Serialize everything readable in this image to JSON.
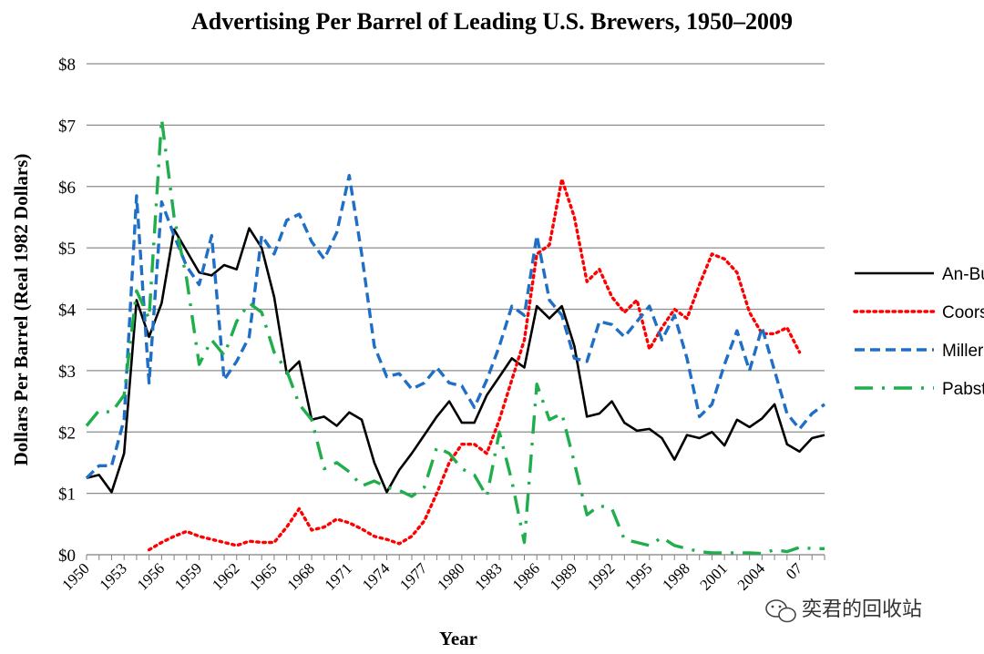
{
  "chart_data": {
    "type": "line",
    "title": "Advertising Per Barrel of Leading U.S. Brewers, 1950–2009",
    "xlabel": "Year",
    "ylabel": "Dollars Per Barrel (Real 1982 Dollars)",
    "xlim": [
      1950,
      2009
    ],
    "ylim": [
      0,
      8
    ],
    "y_ticks": [
      0,
      1,
      2,
      3,
      4,
      5,
      6,
      7,
      8
    ],
    "y_tick_labels": [
      "$0",
      "$1",
      "$2",
      "$3",
      "$4",
      "$5",
      "$6",
      "$7",
      "$8"
    ],
    "x_tick_labels": [
      "1950",
      "1953",
      "1956",
      "1959",
      "1962",
      "1965",
      "1968",
      "1971",
      "1974",
      "1977",
      "1980",
      "1983",
      "1986",
      "1989",
      "1992",
      "1995",
      "1998",
      "2001",
      "2004",
      "2007"
    ],
    "grid": "horizontal",
    "legend_position": "right",
    "series": [
      {
        "name": "An-Bu",
        "color": "#000000",
        "style": "solid",
        "points": [
          [
            1950,
            1.25
          ],
          [
            1951,
            1.3
          ],
          [
            1952,
            1.02
          ],
          [
            1953,
            1.65
          ],
          [
            1954,
            4.15
          ],
          [
            1955,
            3.55
          ],
          [
            1956,
            4.1
          ],
          [
            1957,
            5.3
          ],
          [
            1958,
            4.95
          ],
          [
            1959,
            4.6
          ],
          [
            1960,
            4.55
          ],
          [
            1961,
            4.72
          ],
          [
            1962,
            4.65
          ],
          [
            1963,
            5.32
          ],
          [
            1964,
            5.0
          ],
          [
            1965,
            4.2
          ],
          [
            1966,
            2.95
          ],
          [
            1967,
            3.15
          ],
          [
            1968,
            2.2
          ],
          [
            1969,
            2.25
          ],
          [
            1970,
            2.1
          ],
          [
            1971,
            2.32
          ],
          [
            1972,
            2.2
          ],
          [
            1973,
            1.5
          ],
          [
            1974,
            1.02
          ],
          [
            1975,
            1.38
          ],
          [
            1976,
            1.65
          ],
          [
            1977,
            1.95
          ],
          [
            1978,
            2.25
          ],
          [
            1979,
            2.5
          ],
          [
            1980,
            2.15
          ],
          [
            1981,
            2.15
          ],
          [
            1982,
            2.6
          ],
          [
            1983,
            2.9
          ],
          [
            1984,
            3.2
          ],
          [
            1985,
            3.05
          ],
          [
            1986,
            4.05
          ],
          [
            1987,
            3.85
          ],
          [
            1988,
            4.05
          ],
          [
            1989,
            3.4
          ],
          [
            1990,
            2.25
          ],
          [
            1991,
            2.3
          ],
          [
            1992,
            2.5
          ],
          [
            1993,
            2.15
          ],
          [
            1994,
            2.02
          ],
          [
            1995,
            2.05
          ],
          [
            1996,
            1.9
          ],
          [
            1997,
            1.55
          ],
          [
            1998,
            1.95
          ],
          [
            1999,
            1.9
          ],
          [
            2000,
            2.0
          ],
          [
            2001,
            1.78
          ],
          [
            2002,
            2.2
          ],
          [
            2003,
            2.08
          ],
          [
            2004,
            2.22
          ],
          [
            2005,
            2.45
          ],
          [
            2006,
            1.8
          ],
          [
            2007,
            1.68
          ],
          [
            2008,
            1.9
          ],
          [
            2009,
            1.95
          ]
        ]
      },
      {
        "name": "Coors",
        "color": "#ff0000",
        "style": "dotted",
        "points": [
          [
            1955,
            0.08
          ],
          [
            1956,
            0.2
          ],
          [
            1957,
            0.3
          ],
          [
            1958,
            0.38
          ],
          [
            1959,
            0.3
          ],
          [
            1960,
            0.25
          ],
          [
            1961,
            0.2
          ],
          [
            1962,
            0.15
          ],
          [
            1963,
            0.22
          ],
          [
            1964,
            0.2
          ],
          [
            1965,
            0.2
          ],
          [
            1966,
            0.45
          ],
          [
            1967,
            0.75
          ],
          [
            1968,
            0.4
          ],
          [
            1969,
            0.45
          ],
          [
            1970,
            0.58
          ],
          [
            1971,
            0.52
          ],
          [
            1972,
            0.42
          ],
          [
            1973,
            0.3
          ],
          [
            1974,
            0.25
          ],
          [
            1975,
            0.18
          ],
          [
            1976,
            0.3
          ],
          [
            1977,
            0.55
          ],
          [
            1978,
            1.0
          ],
          [
            1979,
            1.5
          ],
          [
            1980,
            1.8
          ],
          [
            1981,
            1.8
          ],
          [
            1982,
            1.65
          ],
          [
            1983,
            2.2
          ],
          [
            1984,
            2.85
          ],
          [
            1985,
            3.5
          ],
          [
            1986,
            4.9
          ],
          [
            1987,
            5.05
          ],
          [
            1988,
            6.12
          ],
          [
            1989,
            5.5
          ],
          [
            1990,
            4.45
          ],
          [
            1991,
            4.65
          ],
          [
            1992,
            4.2
          ],
          [
            1993,
            3.95
          ],
          [
            1994,
            4.15
          ],
          [
            1995,
            3.35
          ],
          [
            1996,
            3.7
          ],
          [
            1997,
            4.0
          ],
          [
            1998,
            3.85
          ],
          [
            1999,
            4.4
          ],
          [
            2000,
            4.9
          ],
          [
            2001,
            4.82
          ],
          [
            2002,
            4.6
          ],
          [
            2003,
            3.95
          ],
          [
            2004,
            3.6
          ],
          [
            2005,
            3.6
          ],
          [
            2006,
            3.7
          ],
          [
            2007,
            3.3
          ]
        ]
      },
      {
        "name": "Miller",
        "color": "#1f6fc6",
        "style": "dashed",
        "points": [
          [
            1950,
            1.25
          ],
          [
            1951,
            1.45
          ],
          [
            1952,
            1.45
          ],
          [
            1953,
            2.2
          ],
          [
            1954,
            5.85
          ],
          [
            1955,
            2.8
          ],
          [
            1956,
            5.75
          ],
          [
            1957,
            5.2
          ],
          [
            1958,
            4.7
          ],
          [
            1959,
            4.4
          ],
          [
            1960,
            5.2
          ],
          [
            1961,
            2.85
          ],
          [
            1962,
            3.15
          ],
          [
            1963,
            3.55
          ],
          [
            1964,
            5.2
          ],
          [
            1965,
            4.9
          ],
          [
            1966,
            5.45
          ],
          [
            1967,
            5.55
          ],
          [
            1968,
            5.1
          ],
          [
            1969,
            4.82
          ],
          [
            1970,
            5.25
          ],
          [
            1971,
            6.18
          ],
          [
            1972,
            4.9
          ],
          [
            1973,
            3.4
          ],
          [
            1974,
            2.9
          ],
          [
            1975,
            2.95
          ],
          [
            1976,
            2.7
          ],
          [
            1977,
            2.8
          ],
          [
            1978,
            3.05
          ],
          [
            1979,
            2.8
          ],
          [
            1980,
            2.75
          ],
          [
            1981,
            2.4
          ],
          [
            1982,
            2.85
          ],
          [
            1983,
            3.4
          ],
          [
            1984,
            4.05
          ],
          [
            1985,
            3.9
          ],
          [
            1986,
            5.2
          ],
          [
            1987,
            4.15
          ],
          [
            1988,
            3.9
          ],
          [
            1989,
            3.2
          ],
          [
            1990,
            3.15
          ],
          [
            1991,
            3.8
          ],
          [
            1992,
            3.75
          ],
          [
            1993,
            3.55
          ],
          [
            1994,
            3.8
          ],
          [
            1995,
            4.05
          ],
          [
            1996,
            3.5
          ],
          [
            1997,
            3.9
          ],
          [
            1998,
            3.2
          ],
          [
            1999,
            2.25
          ],
          [
            2000,
            2.45
          ],
          [
            2001,
            3.1
          ],
          [
            2002,
            3.65
          ],
          [
            2003,
            3.0
          ],
          [
            2004,
            3.7
          ],
          [
            2005,
            3.0
          ],
          [
            2006,
            2.3
          ],
          [
            2007,
            2.05
          ],
          [
            2008,
            2.3
          ],
          [
            2009,
            2.45
          ]
        ]
      },
      {
        "name": "Pabst",
        "color": "#1fae4b",
        "style": "dash-dot",
        "points": [
          [
            1950,
            2.1
          ],
          [
            1951,
            2.35
          ],
          [
            1952,
            2.32
          ],
          [
            1953,
            2.6
          ],
          [
            1954,
            4.3
          ],
          [
            1955,
            3.85
          ],
          [
            1956,
            7.1
          ],
          [
            1957,
            5.5
          ],
          [
            1958,
            4.5
          ],
          [
            1959,
            3.1
          ],
          [
            1960,
            3.5
          ],
          [
            1961,
            3.25
          ],
          [
            1962,
            3.8
          ],
          [
            1963,
            4.1
          ],
          [
            1964,
            3.95
          ],
          [
            1965,
            3.3
          ],
          [
            1966,
            3.0
          ],
          [
            1967,
            2.45
          ],
          [
            1968,
            2.2
          ],
          [
            1969,
            1.4
          ],
          [
            1970,
            1.5
          ],
          [
            1971,
            1.35
          ],
          [
            1972,
            1.12
          ],
          [
            1973,
            1.2
          ],
          [
            1974,
            1.1
          ],
          [
            1975,
            1.05
          ],
          [
            1976,
            0.95
          ],
          [
            1977,
            1.1
          ],
          [
            1978,
            1.75
          ],
          [
            1979,
            1.65
          ],
          [
            1980,
            1.4
          ],
          [
            1981,
            1.3
          ],
          [
            1982,
            0.95
          ],
          [
            1983,
            2.0
          ],
          [
            1984,
            1.2
          ],
          [
            1985,
            0.2
          ],
          [
            1986,
            2.78
          ],
          [
            1987,
            2.2
          ],
          [
            1988,
            2.3
          ],
          [
            1989,
            1.5
          ],
          [
            1990,
            0.65
          ],
          [
            1991,
            0.8
          ],
          [
            1992,
            0.75
          ],
          [
            1993,
            0.25
          ],
          [
            1994,
            0.2
          ],
          [
            1995,
            0.15
          ],
          [
            1996,
            0.28
          ],
          [
            1997,
            0.15
          ],
          [
            1998,
            0.1
          ],
          [
            1999,
            0.05
          ],
          [
            2000,
            0.03
          ],
          [
            2001,
            0.03
          ],
          [
            2002,
            0.03
          ],
          [
            2003,
            0.03
          ],
          [
            2004,
            0.02
          ],
          [
            2005,
            0.08
          ],
          [
            2006,
            0.05
          ],
          [
            2007,
            0.12
          ],
          [
            2008,
            0.1
          ],
          [
            2009,
            0.1
          ]
        ]
      }
    ]
  },
  "watermark": "奕君的回收站",
  "watermark_icon": "wechat-icon"
}
